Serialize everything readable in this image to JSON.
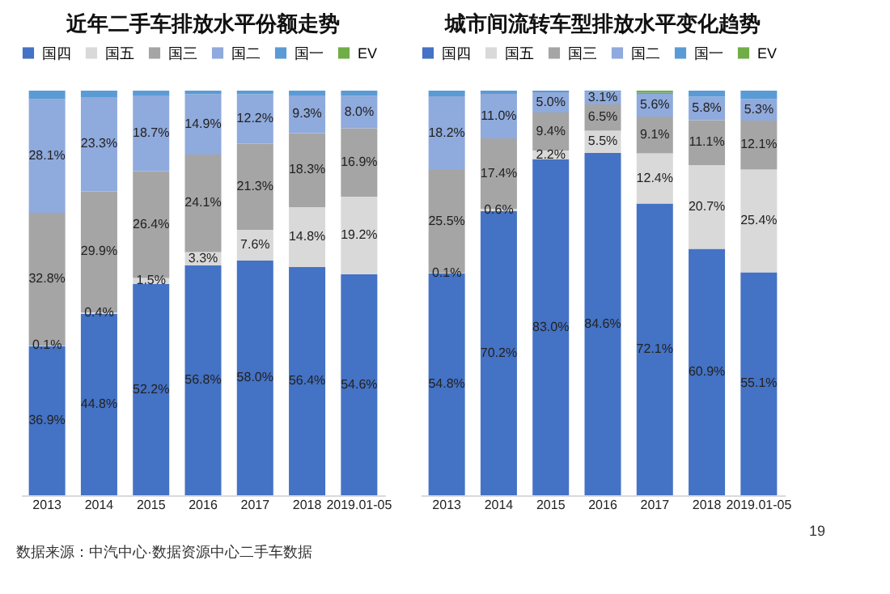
{
  "chart_data": [
    {
      "type": "bar",
      "title": "近年二手车排放水平份额走势",
      "stacked": true,
      "legend": "top",
      "ylim": [
        0,
        100
      ],
      "tick_labels": "x",
      "categories": [
        "2013",
        "2014",
        "2015",
        "2016",
        "2017",
        "2018",
        "2019.01-05"
      ],
      "series": [
        {
          "name": "国四",
          "color": "#4472c4",
          "values": [
            36.9,
            44.8,
            52.2,
            56.8,
            58.0,
            56.4,
            54.6
          ],
          "value_labels": [
            "36.9%",
            "44.8%",
            "52.2%",
            "56.8%",
            "58.0%",
            "56.4%",
            "54.6%"
          ]
        },
        {
          "name": "国五",
          "color": "#d9d9d9",
          "values": [
            0.1,
            0.4,
            1.5,
            3.3,
            7.6,
            14.8,
            19.2
          ],
          "value_labels": [
            "0.1%",
            "0.4%",
            "1.5%",
            "3.3%",
            "7.6%",
            "14.8%",
            "19.2%"
          ]
        },
        {
          "name": "国三",
          "color": "#a5a5a5",
          "values": [
            32.8,
            29.9,
            26.4,
            24.1,
            21.3,
            18.3,
            16.9
          ],
          "value_labels": [
            "32.8%",
            "29.9%",
            "26.4%",
            "24.1%",
            "21.3%",
            "18.3%",
            "16.9%"
          ]
        },
        {
          "name": "国二",
          "color": "#8faadc",
          "values": [
            28.1,
            23.3,
            18.7,
            14.9,
            12.2,
            9.3,
            8.0
          ],
          "value_labels": [
            "28.1%",
            "23.3%",
            "18.7%",
            "14.9%",
            "12.2%",
            "9.3%",
            "8.0%"
          ]
        },
        {
          "name": "国一",
          "color": "#5b9bd5",
          "values": [
            2.1,
            1.6,
            1.2,
            0.9,
            0.9,
            1.2,
            1.3
          ]
        },
        {
          "name": "EV",
          "color": "#70ad47",
          "values": [
            null,
            null,
            null,
            null,
            null,
            null,
            null
          ]
        }
      ],
      "annotations": [
        "数据来源：中汽中心·数据资源中心二手车数据"
      ]
    },
    {
      "type": "bar",
      "title": "城市间流转车型排放水平变化趋势",
      "stacked": true,
      "legend": "top",
      "ylim": [
        0,
        100
      ],
      "tick_labels": "x",
      "categories": [
        "2013",
        "2014",
        "2015",
        "2016",
        "2017",
        "2018",
        "2019.01-05"
      ],
      "series": [
        {
          "name": "国四",
          "color": "#4472c4",
          "values": [
            54.8,
            70.2,
            83.0,
            84.6,
            72.1,
            60.9,
            55.1
          ],
          "value_labels": [
            "54.8%",
            "70.2%",
            "83.0%",
            "84.6%",
            "72.1%",
            "60.9%",
            "55.1%"
          ]
        },
        {
          "name": "国五",
          "color": "#d9d9d9",
          "values": [
            0.1,
            0.6,
            2.2,
            5.5,
            12.4,
            20.7,
            25.4
          ],
          "value_labels": [
            "0.1%",
            "0.6%",
            "2.2%",
            "5.5%",
            "12.4%",
            "20.7%",
            "25.4%"
          ]
        },
        {
          "name": "国三",
          "color": "#a5a5a5",
          "values": [
            25.5,
            17.4,
            9.4,
            6.5,
            9.1,
            11.1,
            12.1
          ],
          "value_labels": [
            "25.5%",
            "17.4%",
            "9.4%",
            "6.5%",
            "9.1%",
            "11.1%",
            "12.1%"
          ]
        },
        {
          "name": "国二",
          "color": "#8faadc",
          "values": [
            18.2,
            11.0,
            5.0,
            3.1,
            5.6,
            5.8,
            5.3
          ],
          "value_labels": [
            "18.2%",
            "11.0%",
            "5.0%",
            "3.1%",
            "5.6%",
            "5.8%",
            "5.3%"
          ]
        },
        {
          "name": "国一",
          "color": "#5b9bd5",
          "values": [
            1.4,
            0.8,
            0.4,
            0.3,
            0.3,
            1.5,
            2.1
          ]
        },
        {
          "name": "EV",
          "color": "#70ad47",
          "values": [
            null,
            null,
            null,
            null,
            0.5,
            null,
            null
          ]
        }
      ],
      "annotations": [
        "19"
      ]
    }
  ]
}
